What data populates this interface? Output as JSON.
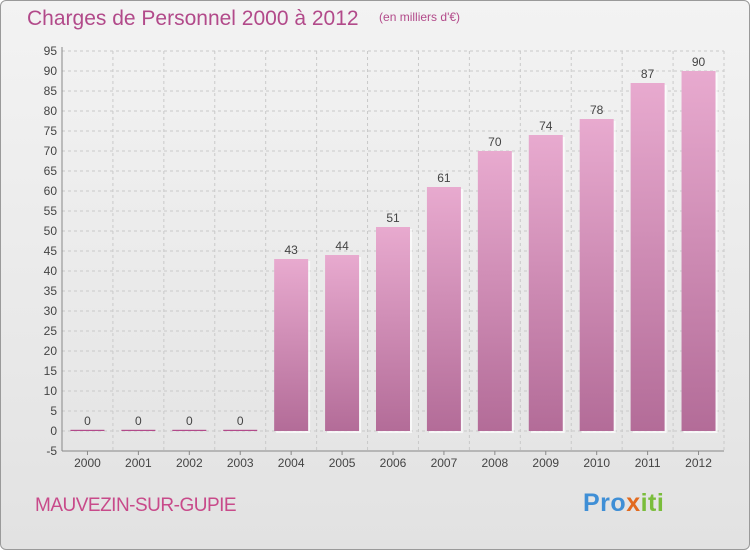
{
  "header": {
    "title": "Charges de Personnel 2000 à 2012",
    "subtitle": "(en milliers d'€)"
  },
  "footer": {
    "commune": "MAUVEZIN-SUR-GUPIE",
    "logo": {
      "part1": "Pro",
      "part2": "x",
      "part3": "iti",
      "text": "Proxiti"
    }
  },
  "colors": {
    "accent": "#b24a8a",
    "bar_top": "#e8aacf",
    "bar_bottom": "#b36c98",
    "grid": "#c9c9c9"
  },
  "chart_data": {
    "type": "bar",
    "title": "Charges de Personnel 2000 à 2012",
    "subtitle": "(en milliers d'€)",
    "categories": [
      "2000",
      "2001",
      "2002",
      "2003",
      "2004",
      "2005",
      "2006",
      "2007",
      "2008",
      "2009",
      "2010",
      "2011",
      "2012"
    ],
    "values": [
      0,
      0,
      0,
      0,
      43,
      44,
      51,
      61,
      70,
      74,
      78,
      87,
      90
    ],
    "ylim": [
      -5,
      95
    ],
    "yticks": [
      -5,
      0,
      5,
      10,
      15,
      20,
      25,
      30,
      35,
      40,
      45,
      50,
      55,
      60,
      65,
      70,
      75,
      80,
      85,
      90,
      95
    ],
    "grid": true,
    "xlabel": "",
    "ylabel": ""
  }
}
